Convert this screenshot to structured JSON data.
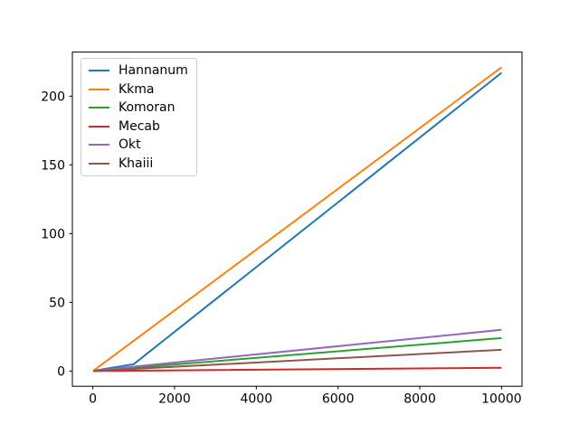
{
  "chart_data": {
    "type": "line",
    "title": "",
    "xlabel": "",
    "ylabel": "",
    "x": [
      10,
      100,
      1000,
      10000
    ],
    "series": [
      {
        "name": "Hannanum",
        "color": "#1f77b4",
        "values": [
          0.1,
          0.6,
          5.0,
          217.0
        ]
      },
      {
        "name": "Kkma",
        "color": "#ff7f0e",
        "values": [
          0.2,
          2.2,
          22.0,
          221.0
        ]
      },
      {
        "name": "Komoran",
        "color": "#2ca02c",
        "values": [
          0.03,
          0.25,
          2.4,
          24.0
        ]
      },
      {
        "name": "Mecab",
        "color": "#d62728",
        "values": [
          0.005,
          0.03,
          0.25,
          2.4
        ]
      },
      {
        "name": "Okt",
        "color": "#9467bd",
        "values": [
          0.04,
          0.35,
          3.2,
          30.0
        ]
      },
      {
        "name": "Khaiii",
        "color": "#8c564b",
        "values": [
          0.02,
          0.16,
          1.6,
          15.5
        ]
      }
    ],
    "xticks": [
      0,
      2000,
      4000,
      6000,
      8000,
      10000
    ],
    "yticks": [
      0,
      50,
      100,
      150,
      200
    ],
    "xlim": [
      -500,
      10500
    ],
    "ylim": [
      -11.05,
      232.05
    ],
    "grid": false,
    "legend_position": "upper-left",
    "line_width": 2,
    "frame_color": "#000000",
    "tick_color": "#000000",
    "background": "#ffffff"
  }
}
